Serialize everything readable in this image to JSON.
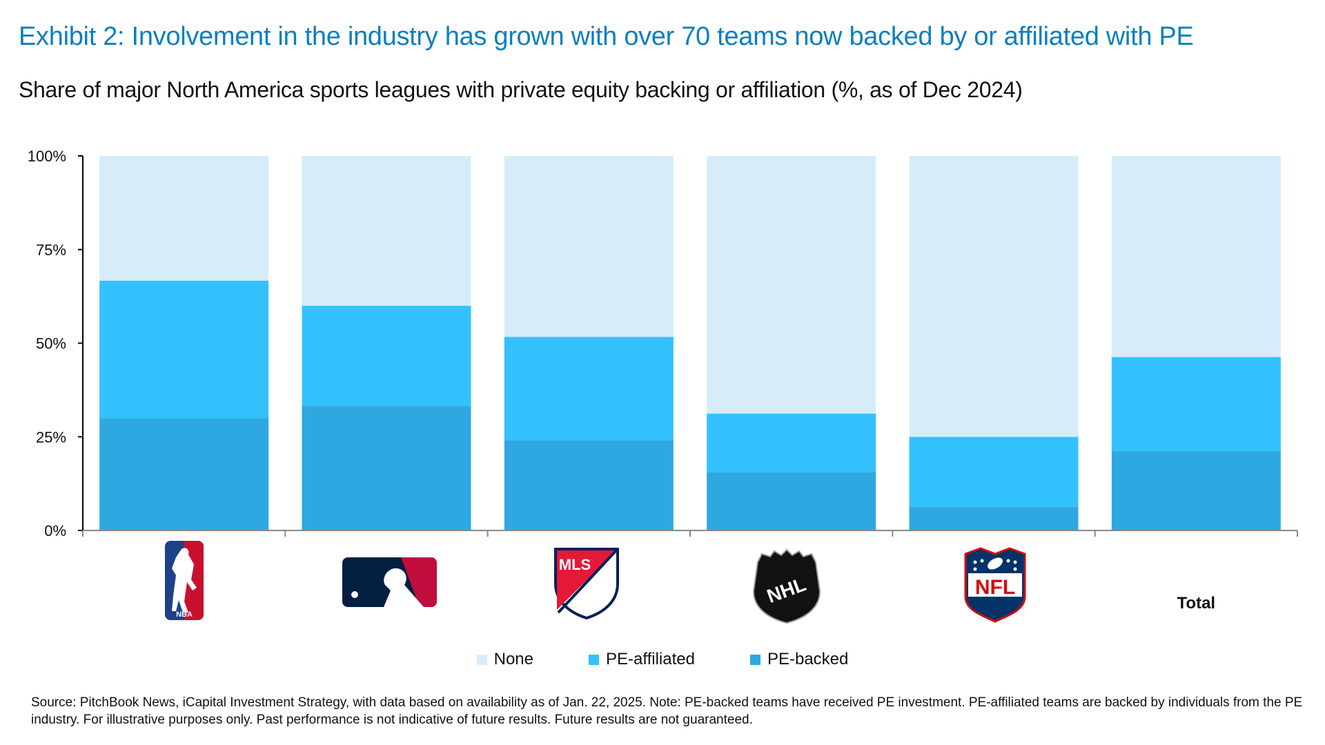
{
  "title": "Exhibit 2: Involvement in the industry has grown with over 70 teams now backed by or affiliated with PE",
  "subtitle": "Share of major North America sports leagues with private equity backing or affiliation (%, as of Dec 2024)",
  "source": "Source: PitchBook News, iCapital Investment Strategy, with data based on availability as of Jan. 22, 2025. Note: PE-backed teams have received PE investment. PE-affiliated teams are backed by individuals from the PE industry. For illustrative purposes only. Past performance is not indicative of future results. Future results are not guaranteed.",
  "logos": [
    "NBA",
    "MLB",
    "MLS",
    "NHL",
    "NFL"
  ],
  "chart_data": {
    "type": "bar",
    "stacked": true,
    "categories": [
      "NBA",
      "MLB",
      "MLS",
      "NHL",
      "NFL",
      "Total"
    ],
    "category_display": [
      "logo",
      "logo",
      "logo",
      "logo",
      "logo",
      "Total"
    ],
    "series": [
      {
        "name": "PE-backed",
        "color": "#2ea8e0",
        "values": [
          30.0,
          33.3,
          24.1,
          15.6,
          6.3,
          21.3
        ]
      },
      {
        "name": "PE-affiliated",
        "color": "#33c1fe",
        "values": [
          36.7,
          26.7,
          27.6,
          15.6,
          18.7,
          25.0
        ]
      },
      {
        "name": "None",
        "color": "#d6edf9",
        "values": [
          33.3,
          40.0,
          48.3,
          68.8,
          75.0,
          53.7
        ]
      }
    ],
    "legend_order": [
      "None",
      "PE-affiliated",
      "PE-backed"
    ],
    "yticks": [
      "0%",
      "25%",
      "50%",
      "75%",
      "100%"
    ],
    "ylim": [
      0,
      100
    ],
    "grid": false,
    "legend_position": "bottom"
  }
}
